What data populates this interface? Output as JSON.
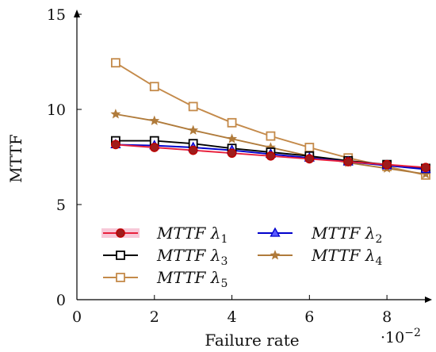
{
  "chart_data": {
    "type": "line",
    "title": "",
    "xlabel": "Failure rate",
    "ylabel": "MTTF",
    "x_multiplier_label": "·10",
    "x_multiplier_exponent": "−2",
    "xlim": [
      0,
      9
    ],
    "ylim": [
      0,
      15
    ],
    "x_ticks": [
      0,
      2,
      4,
      6,
      8
    ],
    "x_tick_labels": [
      "0",
      "2",
      "4",
      "6",
      "8"
    ],
    "y_ticks": [
      0,
      5,
      10,
      15
    ],
    "y_tick_labels": [
      "0",
      "5",
      "10",
      "15"
    ],
    "grid": false,
    "legend_position": "bottom-left",
    "x": [
      1,
      2,
      3,
      4,
      5,
      6,
      7,
      8,
      9
    ],
    "series": [
      {
        "name": "MTTF λ1",
        "base": "MTTF λ",
        "sub": "1",
        "color": "#cc0000",
        "marker": "circle-filled",
        "values": [
          8.15,
          8.0,
          7.85,
          7.7,
          7.55,
          7.4,
          7.25,
          7.1,
          6.95
        ]
      },
      {
        "name": "MTTF λ2",
        "base": "MTTF λ",
        "sub": "2",
        "color": "#0000cc",
        "marker": "triangle",
        "values": [
          8.15,
          8.1,
          8.0,
          7.85,
          7.65,
          7.45,
          7.25,
          7.05,
          6.85
        ]
      },
      {
        "name": "MTTF λ3",
        "base": "MTTF λ",
        "sub": "3",
        "color": "#000000",
        "marker": "square",
        "values": [
          8.35,
          8.35,
          8.2,
          7.95,
          7.75,
          7.55,
          7.3,
          7.1,
          6.9
        ]
      },
      {
        "name": "MTTF λ4",
        "base": "MTTF λ",
        "sub": "4",
        "color": "#b07b3b",
        "marker": "star",
        "values": [
          9.75,
          9.4,
          8.9,
          8.45,
          8.0,
          7.55,
          7.2,
          6.9,
          6.6
        ]
      },
      {
        "name": "MTTF λ5",
        "base": "MTTF λ",
        "sub": "5",
        "color": "#c48a4a",
        "marker": "square",
        "values": [
          12.45,
          11.2,
          10.15,
          9.3,
          8.6,
          8.0,
          7.45,
          7.0,
          6.55
        ]
      }
    ],
    "legend_order": [
      0,
      1,
      2,
      3,
      4
    ]
  }
}
